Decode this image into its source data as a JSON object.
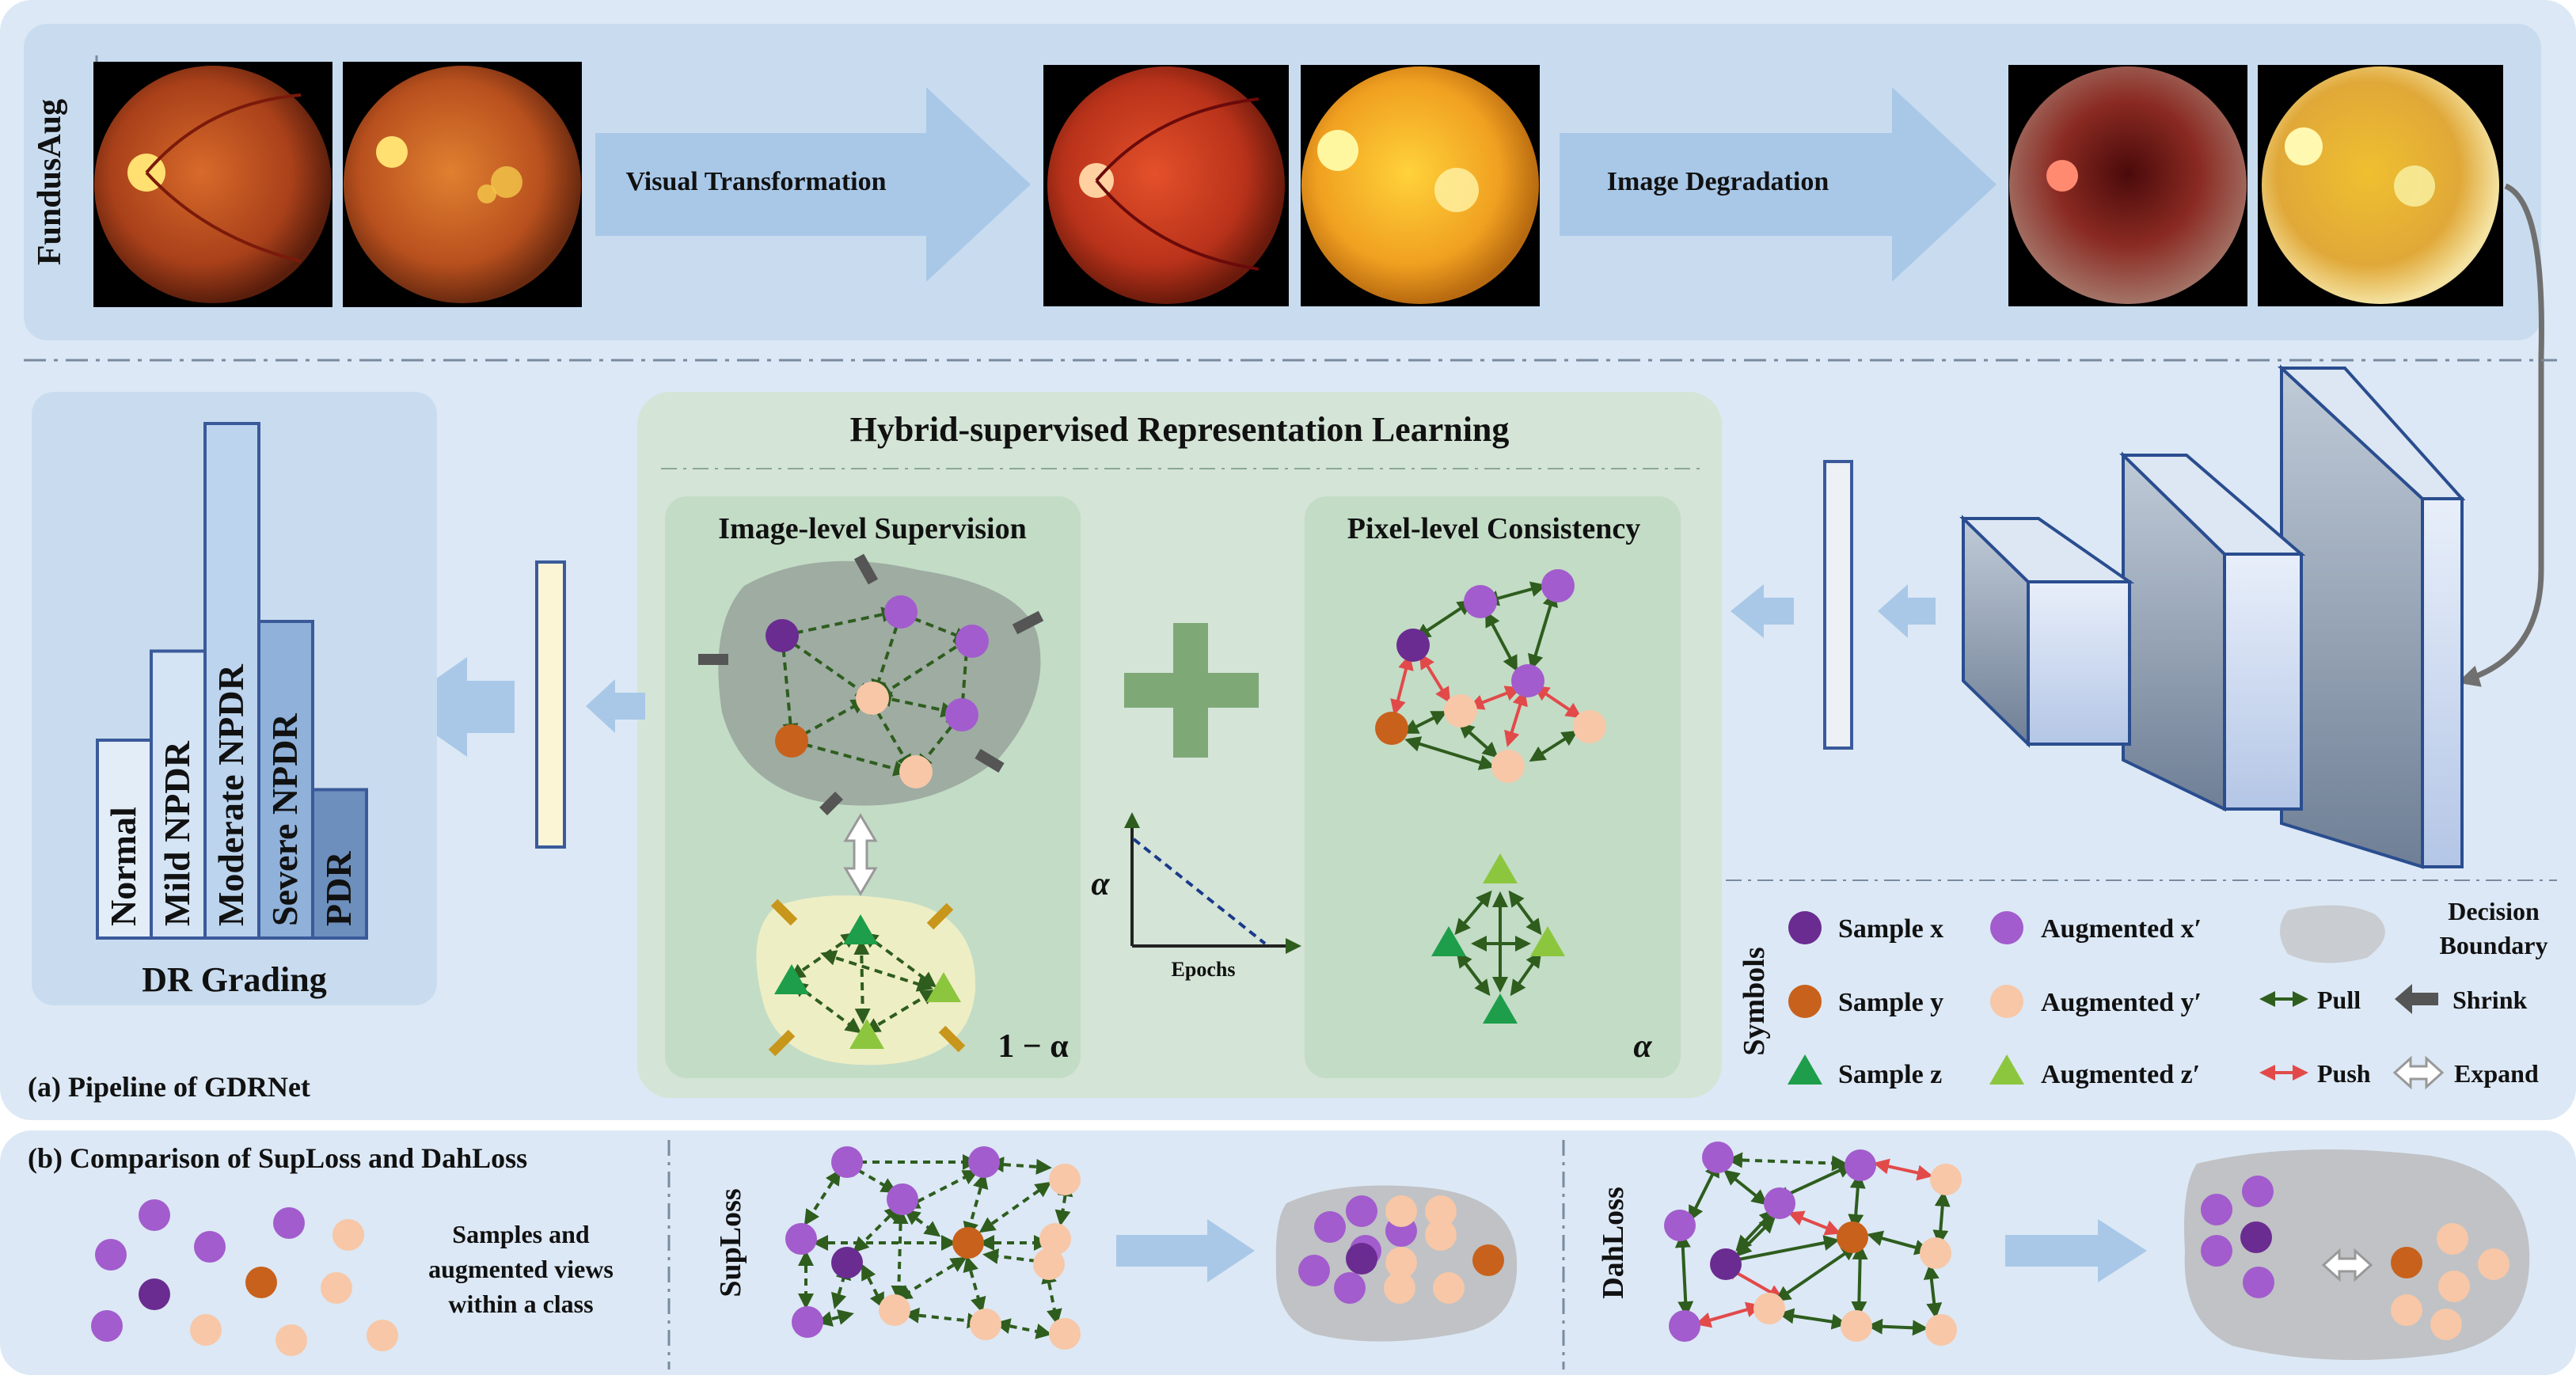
{
  "fundusaug": {
    "side_label": "FundusAug",
    "visual_transformation": "Visual Transformation",
    "image_degradation": "Image Degradation"
  },
  "pipeline": {
    "caption": "(a) Pipeline of GDRNet",
    "dr_grading": {
      "title": "DR Grading",
      "bars": [
        {
          "label": "Normal",
          "level": 1.0,
          "color": "#e3edf8"
        },
        {
          "label": "Mild NPDR",
          "level": 1.45,
          "color": "#d4e4f5"
        },
        {
          "label": "Moderate NPDR",
          "level": 2.6,
          "color": "#bcd4ee"
        },
        {
          "label": "Severe NPDR",
          "level": 1.6,
          "color": "#8fb1da"
        },
        {
          "label": "PDR",
          "level": 0.75,
          "color": "#6c8fbd"
        }
      ]
    },
    "hybrid": {
      "title": "Hybrid-supervised Representation Learning",
      "image_level": "Image-level Supervision",
      "pixel_level": "Pixel-level Consistency",
      "one_minus_alpha": "1 − α",
      "alpha": "α",
      "alpha_axis": "α",
      "epochs_axis": "Epochs"
    }
  },
  "symbols": {
    "title": "Symbols",
    "sample_x": "Sample x",
    "aug_x": "Augmented x′",
    "decision_boundary": [
      "Decision",
      "Boundary"
    ],
    "sample_y": "Sample y",
    "aug_y": "Augmented y′",
    "pull": "Pull",
    "shrink": "Shrink",
    "sample_z": "Sample z",
    "aug_z": "Augmented z′",
    "push": "Push",
    "expand": "Expand"
  },
  "comparison": {
    "caption": "(b) Comparison of SupLoss and DahLoss",
    "samples_text": [
      "Samples and",
      "augmented views",
      "within a class"
    ],
    "suploss": "SupLoss",
    "dahloss": "DahLoss"
  },
  "colors": {
    "sample_x": "#6a2c91",
    "aug_x": "#a25ccd",
    "sample_y": "#c8611b",
    "aug_y": "#f7c7a7",
    "sample_z": "#1e9e4a",
    "aug_z": "#8cc63f",
    "pull": "#2e5d1e",
    "push": "#e24a4a",
    "panel_bg": "#dfeaf6",
    "green_panel": "#d9e8dd",
    "arrow_blue": "#a9c8e8"
  }
}
